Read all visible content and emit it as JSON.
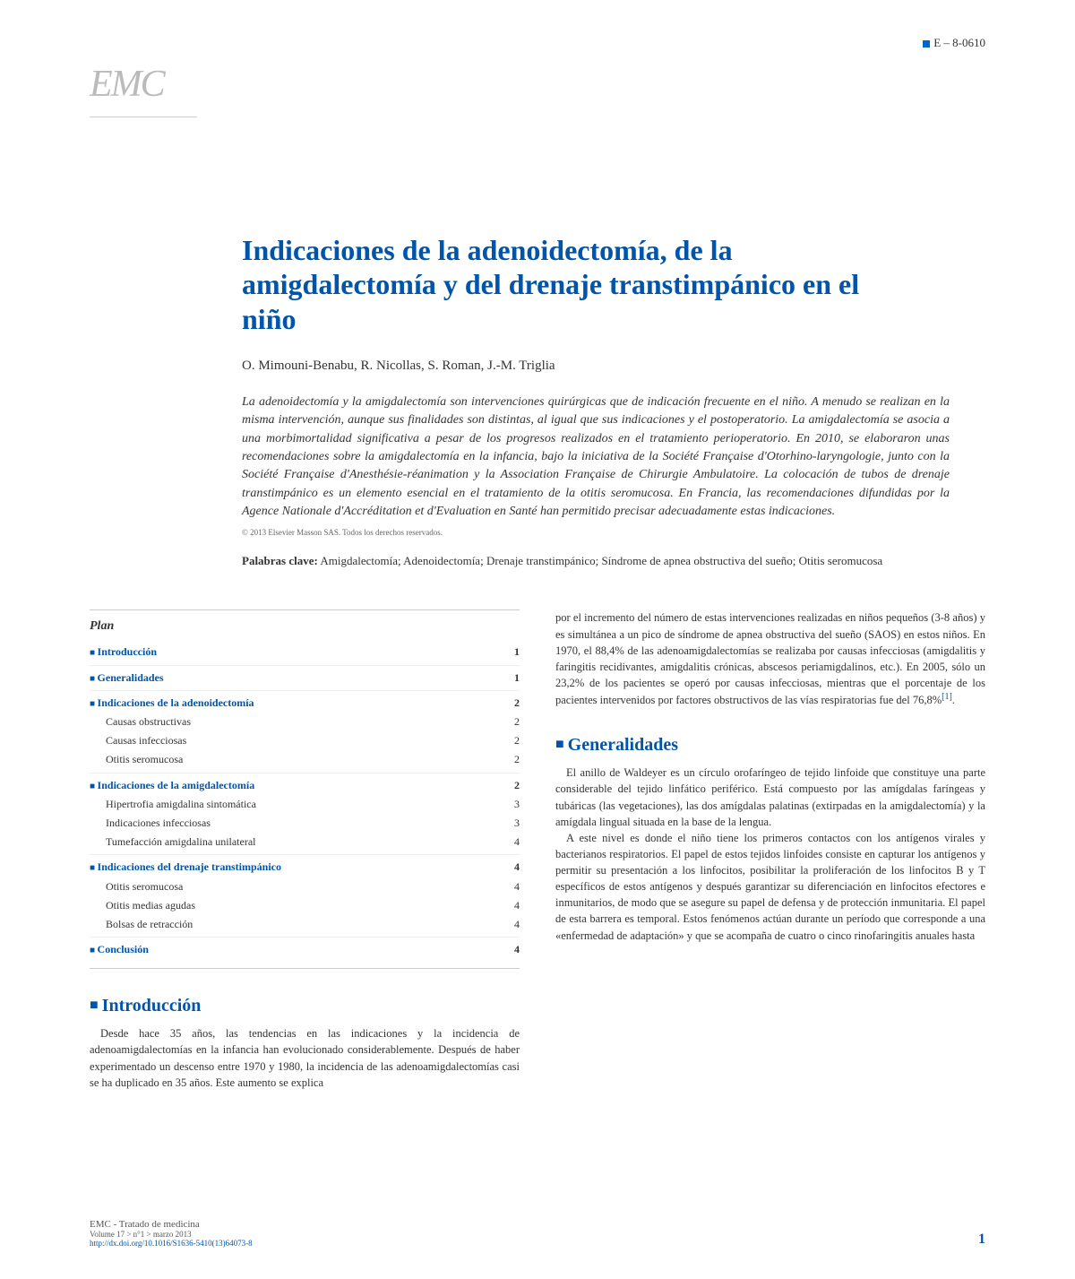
{
  "header_code": "E – 8-0610",
  "logo_text": "EMC",
  "title": "Indicaciones de la adenoidectomía, de la amigdalectomía y del drenaje transtimpánico en el niño",
  "authors": "O. Mimouni-Benabu, R. Nicollas, S. Roman, J.-M. Triglia",
  "abstract": "La adenoidectomía y la amigdalectomía son intervenciones quirúrgicas que de indicación frecuente en el niño. A menudo se realizan en la misma intervención, aunque sus finalidades son distintas, al igual que sus indicaciones y el postoperatorio. La amigdalectomía se asocia a una morbimortalidad significativa a pesar de los progresos realizados en el tratamiento perioperatorio. En 2010, se elaboraron unas recomendaciones sobre la amigdalectomía en la infancia, bajo la iniciativa de la Société Française d'Otorhino-laryngologie, junto con la Société Française d'Anesthésie-réanimation y la Association Française de Chirurgie Ambulatoire. La colocación de tubos de drenaje transtimpánico es un elemento esencial en el tratamiento de la otitis seromucosa. En Francia, las recomendaciones difundidas por la Agence Nationale d'Accréditation et d'Evaluation en Santé han permitido precisar adecuadamente estas indicaciones.",
  "copyright": "© 2013 Elsevier Masson SAS. Todos los derechos reservados.",
  "keywords_label": "Palabras clave:",
  "keywords_text": " Amigdalectomía; Adenoidectomía; Drenaje transtimpánico; Síndrome de apnea obstructiva del sueño; Otitis seromucosa",
  "plan": {
    "title": "Plan",
    "items": [
      {
        "type": "section",
        "label": "Introducción",
        "page": "1"
      },
      {
        "type": "divider"
      },
      {
        "type": "section",
        "label": "Generalidades",
        "page": "1"
      },
      {
        "type": "divider"
      },
      {
        "type": "section",
        "label": "Indicaciones de la adenoidectomía",
        "page": "2"
      },
      {
        "type": "sub",
        "label": "Causas obstructivas",
        "page": "2"
      },
      {
        "type": "sub",
        "label": "Causas infecciosas",
        "page": "2"
      },
      {
        "type": "sub",
        "label": "Otitis seromucosa",
        "page": "2"
      },
      {
        "type": "divider"
      },
      {
        "type": "section",
        "label": "Indicaciones de la amigdalectomía",
        "page": "2"
      },
      {
        "type": "sub",
        "label": "Hipertrofia amigdalina sintomática",
        "page": "3"
      },
      {
        "type": "sub",
        "label": "Indicaciones infecciosas",
        "page": "3"
      },
      {
        "type": "sub",
        "label": "Tumefacción amigdalina unilateral",
        "page": "4"
      },
      {
        "type": "divider"
      },
      {
        "type": "section",
        "label": "Indicaciones del drenaje transtimpánico",
        "page": "4"
      },
      {
        "type": "sub",
        "label": "Otitis seromucosa",
        "page": "4"
      },
      {
        "type": "sub",
        "label": "Otitis medias agudas",
        "page": "4"
      },
      {
        "type": "sub",
        "label": "Bolsas de retracción",
        "page": "4"
      },
      {
        "type": "divider"
      },
      {
        "type": "section",
        "label": "Conclusión",
        "page": "4"
      }
    ]
  },
  "sections": {
    "introduccion": {
      "heading": "Introducción",
      "text": "Desde hace 35 años, las tendencias en las indicaciones y la incidencia de adenoamigdalectomías en la infancia han evolucionado considerablemente. Después de haber experimentado un descenso entre 1970 y 1980, la incidencia de las adenoamigdalectomías casi se ha duplicado en 35 años. Este aumento se explica"
    },
    "right_top_text": "por el incremento del número de estas intervenciones realizadas en niños pequeños (3-8 años) y es simultánea a un pico de síndrome de apnea obstructiva del sueño (SAOS) en estos niños. En 1970, el 88,4% de las adenoamigdalectomías se realizaba por causas infecciosas (amigdalitis y faringitis recidivantes, amigdalitis crónicas, abscesos periamigdalinos, etc.). En 2005, sólo un 23,2% de los pacientes se operó por causas infecciosas, mientras que el porcentaje de los pacientes intervenidos por factores obstructivos de las vías respiratorias fue del 76,8%",
    "right_top_ref": "[1]",
    "generalidades": {
      "heading": "Generalidades",
      "para1": "El anillo de Waldeyer es un círculo orofaríngeo de tejido linfoide que constituye una parte considerable del tejido linfático periférico. Está compuesto por las amígdalas faríngeas y tubáricas (las vegetaciones), las dos amígdalas palatinas (extirpadas en la amigdalectomía) y la amígdala lingual situada en la base de la lengua.",
      "para2": "A este nivel es donde el niño tiene los primeros contactos con los antígenos virales y bacterianos respiratorios. El papel de estos tejidos linfoides consiste en capturar los antígenos y permitir su presentación a los linfocitos, posibilitar la proliferación de los linfocitos B y T específicos de estos antígenos y después garantizar su diferenciación en linfocitos efectores e inmunitarios, de modo que se asegure su papel de defensa y de protección inmunitaria. El papel de esta barrera es temporal. Estos fenómenos actúan durante un período que corresponde a una «enfermedad de adaptación» y que se acompaña de cuatro o cinco rinofaringitis anuales hasta"
    }
  },
  "footer": {
    "line1": "EMC - Tratado de medicina",
    "line2": "Volume 17 > n°1 > marzo 2013",
    "doi": "http://dx.doi.org/10.1016/S1636-5410(13)64073-8",
    "page": "1"
  },
  "colors": {
    "primary_blue": "#0055aa",
    "link_blue": "#0066cc",
    "text": "#333333",
    "text_light": "#666666",
    "logo_gray": "#bbbbbb",
    "divider": "#cccccc",
    "background": "#ffffff"
  }
}
